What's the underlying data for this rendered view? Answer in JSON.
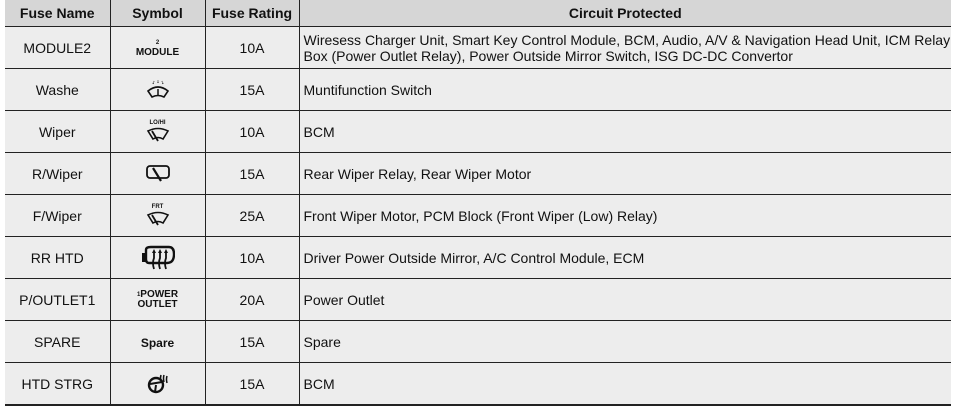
{
  "headers": [
    "Fuse Name",
    "Symbol",
    "Fuse Rating",
    "Circuit Protected"
  ],
  "rows": [
    {
      "name": "MODULE2",
      "symbol": "module-text",
      "symbol_sup": "2",
      "symbol_text": "MODULE",
      "rating": "10A",
      "circuit": "Wiresess Charger Unit, Smart Key Control Module, BCM, Audio, A/V & Navigation Head Unit, ICM Relay Box (Power Outlet Relay), Power Outside Mirror Switch, ISG DC-DC Convertor"
    },
    {
      "name": "Washe",
      "symbol": "washer-icon",
      "rating": "15A",
      "circuit": "Muntifunction Switch"
    },
    {
      "name": "Wiper",
      "symbol": "wiper-icon",
      "symbol_text": "LO/HI",
      "rating": "10A",
      "circuit": "BCM"
    },
    {
      "name": "R/Wiper",
      "symbol": "rear-wiper-icon",
      "rating": "15A",
      "circuit": "Rear Wiper Relay, Rear Wiper Motor"
    },
    {
      "name": "F/Wiper",
      "symbol": "front-wiper-icon",
      "symbol_text": "FRT",
      "rating": "25A",
      "circuit": "Front Wiper Motor, PCM Block (Front Wiper (Low) Relay)"
    },
    {
      "name": "RR HTD",
      "symbol": "heated-mirror-icon",
      "rating": "10A",
      "circuit": "Driver Power Outside Mirror, A/C Control Module, ECM"
    },
    {
      "name": "P/OUTLET1",
      "symbol": "power-outlet-text",
      "symbol_sup": "1",
      "symbol_text": "POWER",
      "symbol_text2": "OUTLET",
      "rating": "20A",
      "circuit": "Power Outlet"
    },
    {
      "name": "SPARE",
      "symbol": "spare-text",
      "symbol_text": "Spare",
      "rating": "15A",
      "circuit": "Spare"
    },
    {
      "name": "HTD STRG",
      "symbol": "heated-steering-icon",
      "rating": "15A",
      "circuit": "BCM"
    }
  ]
}
